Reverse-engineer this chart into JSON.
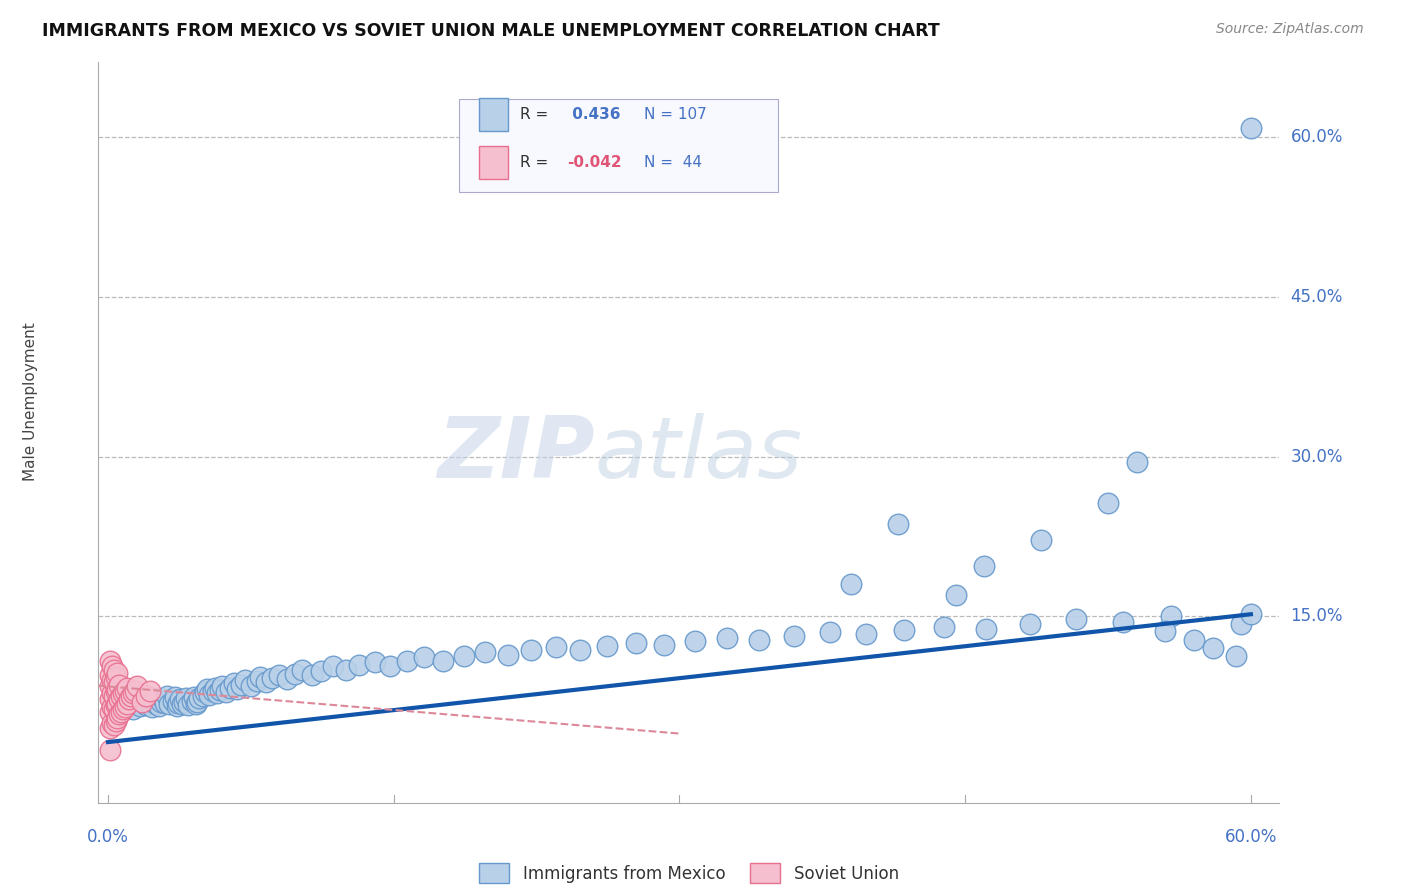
{
  "title": "IMMIGRANTS FROM MEXICO VS SOVIET UNION MALE UNEMPLOYMENT CORRELATION CHART",
  "source": "Source: ZipAtlas.com",
  "ylabel": "Male Unemployment",
  "ytick_vals": [
    0.15,
    0.3,
    0.45,
    0.6
  ],
  "ytick_labels": [
    "15.0%",
    "30.0%",
    "45.0%",
    "60.0%"
  ],
  "xlim": [
    0.0,
    0.63
  ],
  "ylim": [
    -0.02,
    0.68
  ],
  "plot_xlim": [
    0.0,
    0.6
  ],
  "plot_ylim": [
    0.0,
    0.65
  ],
  "mexico_color": "#b8d0e8",
  "mexico_edge": "#6699cc",
  "soviet_color": "#f5bfd0",
  "soviet_edge": "#e8708f",
  "trend_mexico_color": "#1155aa",
  "trend_soviet_color": "#dd8899",
  "watermark_zip": "ZIP",
  "watermark_atlas": "atlas",
  "bg_color": "#ffffff",
  "mexico_trend_x0": 0.0,
  "mexico_trend_y0": 0.032,
  "mexico_trend_x1": 0.6,
  "mexico_trend_y1": 0.152,
  "soviet_trend_x0": -0.005,
  "soviet_trend_y0": 0.085,
  "soviet_trend_x1": 0.3,
  "soviet_trend_y1": 0.04,
  "legend_R1": "R =",
  "legend_V1": " 0.436",
  "legend_N1": "N = 107",
  "legend_R2": "R =",
  "legend_V2": "-0.042",
  "legend_N2": "N =  44",
  "mexico_points_x": [
    0.005,
    0.007,
    0.008,
    0.01,
    0.012,
    0.013,
    0.015,
    0.016,
    0.017,
    0.018,
    0.019,
    0.02,
    0.021,
    0.022,
    0.023,
    0.024,
    0.025,
    0.026,
    0.027,
    0.028,
    0.029,
    0.03,
    0.031,
    0.032,
    0.034,
    0.035,
    0.036,
    0.037,
    0.038,
    0.039,
    0.04,
    0.041,
    0.042,
    0.044,
    0.045,
    0.046,
    0.047,
    0.048,
    0.05,
    0.051,
    0.052,
    0.053,
    0.055,
    0.056,
    0.057,
    0.059,
    0.06,
    0.062,
    0.064,
    0.066,
    0.068,
    0.07,
    0.072,
    0.075,
    0.078,
    0.08,
    0.083,
    0.086,
    0.09,
    0.094,
    0.098,
    0.102,
    0.107,
    0.112,
    0.118,
    0.125,
    0.132,
    0.14,
    0.148,
    0.157,
    0.166,
    0.176,
    0.187,
    0.198,
    0.21,
    0.222,
    0.235,
    0.248,
    0.262,
    0.277,
    0.292,
    0.308,
    0.325,
    0.342,
    0.36,
    0.379,
    0.398,
    0.418,
    0.439,
    0.461,
    0.484,
    0.508,
    0.533,
    0.558,
    0.555,
    0.57,
    0.58,
    0.592,
    0.595,
    0.6,
    0.6,
    0.49,
    0.525,
    0.54,
    0.46,
    0.445,
    0.415,
    0.39
  ],
  "mexico_points_y": [
    0.068,
    0.072,
    0.065,
    0.075,
    0.07,
    0.063,
    0.068,
    0.071,
    0.066,
    0.073,
    0.069,
    0.067,
    0.074,
    0.07,
    0.065,
    0.071,
    0.068,
    0.073,
    0.066,
    0.07,
    0.072,
    0.069,
    0.075,
    0.068,
    0.071,
    0.074,
    0.066,
    0.069,
    0.072,
    0.068,
    0.07,
    0.073,
    0.067,
    0.071,
    0.074,
    0.068,
    0.07,
    0.073,
    0.075,
    0.079,
    0.082,
    0.076,
    0.08,
    0.083,
    0.078,
    0.081,
    0.085,
    0.079,
    0.083,
    0.087,
    0.082,
    0.086,
    0.09,
    0.085,
    0.089,
    0.093,
    0.088,
    0.092,
    0.095,
    0.091,
    0.096,
    0.1,
    0.095,
    0.099,
    0.103,
    0.1,
    0.104,
    0.107,
    0.103,
    0.108,
    0.112,
    0.108,
    0.113,
    0.117,
    0.114,
    0.118,
    0.121,
    0.118,
    0.122,
    0.125,
    0.123,
    0.127,
    0.13,
    0.128,
    0.132,
    0.135,
    0.133,
    0.137,
    0.14,
    0.138,
    0.143,
    0.148,
    0.145,
    0.15,
    0.136,
    0.128,
    0.12,
    0.113,
    0.143,
    0.152,
    0.608,
    0.222,
    0.256,
    0.295,
    0.197,
    0.17,
    0.237,
    0.18
  ],
  "soviet_points_x": [
    0.001,
    0.001,
    0.001,
    0.001,
    0.001,
    0.001,
    0.002,
    0.002,
    0.002,
    0.002,
    0.002,
    0.003,
    0.003,
    0.003,
    0.003,
    0.003,
    0.004,
    0.004,
    0.004,
    0.004,
    0.005,
    0.005,
    0.005,
    0.005,
    0.006,
    0.006,
    0.006,
    0.007,
    0.007,
    0.008,
    0.008,
    0.009,
    0.009,
    0.01,
    0.01,
    0.011,
    0.012,
    0.013,
    0.014,
    0.015,
    0.018,
    0.02,
    0.022,
    0.001
  ],
  "soviet_points_y": [
    0.045,
    0.06,
    0.072,
    0.085,
    0.095,
    0.108,
    0.05,
    0.065,
    0.078,
    0.09,
    0.103,
    0.048,
    0.063,
    0.075,
    0.088,
    0.1,
    0.052,
    0.067,
    0.08,
    0.093,
    0.055,
    0.068,
    0.082,
    0.097,
    0.058,
    0.072,
    0.086,
    0.06,
    0.075,
    0.063,
    0.078,
    0.065,
    0.08,
    0.068,
    0.083,
    0.072,
    0.075,
    0.078,
    0.08,
    0.085,
    0.07,
    0.075,
    0.08,
    0.025
  ]
}
